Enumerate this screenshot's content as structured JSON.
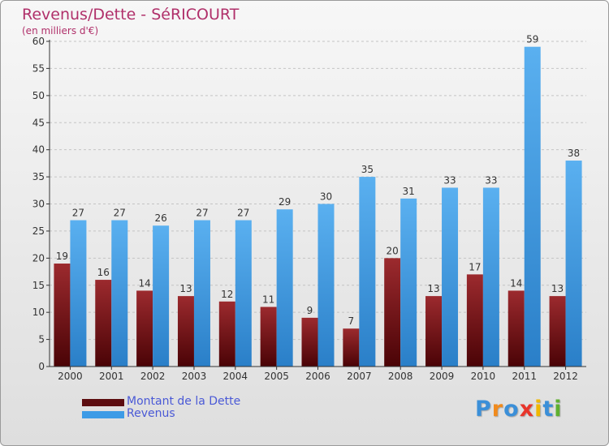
{
  "chart_data": {
    "type": "bar",
    "title": "Revenus/Dette - SéRICOURT",
    "subtitle": "(en milliers d'€)",
    "categories": [
      "2000",
      "2001",
      "2002",
      "2003",
      "2004",
      "2005",
      "2006",
      "2007",
      "2008",
      "2009",
      "2010",
      "2011",
      "2012"
    ],
    "series": [
      {
        "name": "Montant de la Dette",
        "color": "#7a1418",
        "values": [
          19,
          16,
          14,
          13,
          12,
          11,
          9,
          7,
          20,
          13,
          17,
          14,
          13
        ]
      },
      {
        "name": "Revenus",
        "color": "#3d9be6",
        "values": [
          27,
          27,
          26,
          27,
          27,
          29,
          30,
          35,
          31,
          33,
          33,
          59,
          38
        ]
      }
    ],
    "ylim": [
      0,
      60
    ],
    "yticks": [
      0,
      5,
      10,
      15,
      20,
      25,
      30,
      35,
      40,
      45,
      50,
      55,
      60
    ],
    "xlabel": "",
    "ylabel": "",
    "grid": true,
    "legend": "bottom-left"
  },
  "legend": {
    "items": [
      {
        "label": "Montant de la Dette",
        "color": "#5c0d10"
      },
      {
        "label": "Revenus",
        "color": "#3d9be6"
      }
    ]
  },
  "logo": {
    "letters": [
      "P",
      "r",
      "o",
      "x",
      "i",
      "t",
      "i"
    ],
    "colors": [
      "#3b8fd8",
      "#f08a1c",
      "#3b8fd8",
      "#e8352b",
      "#f0b800",
      "#3b8fd8",
      "#5fb030"
    ]
  }
}
